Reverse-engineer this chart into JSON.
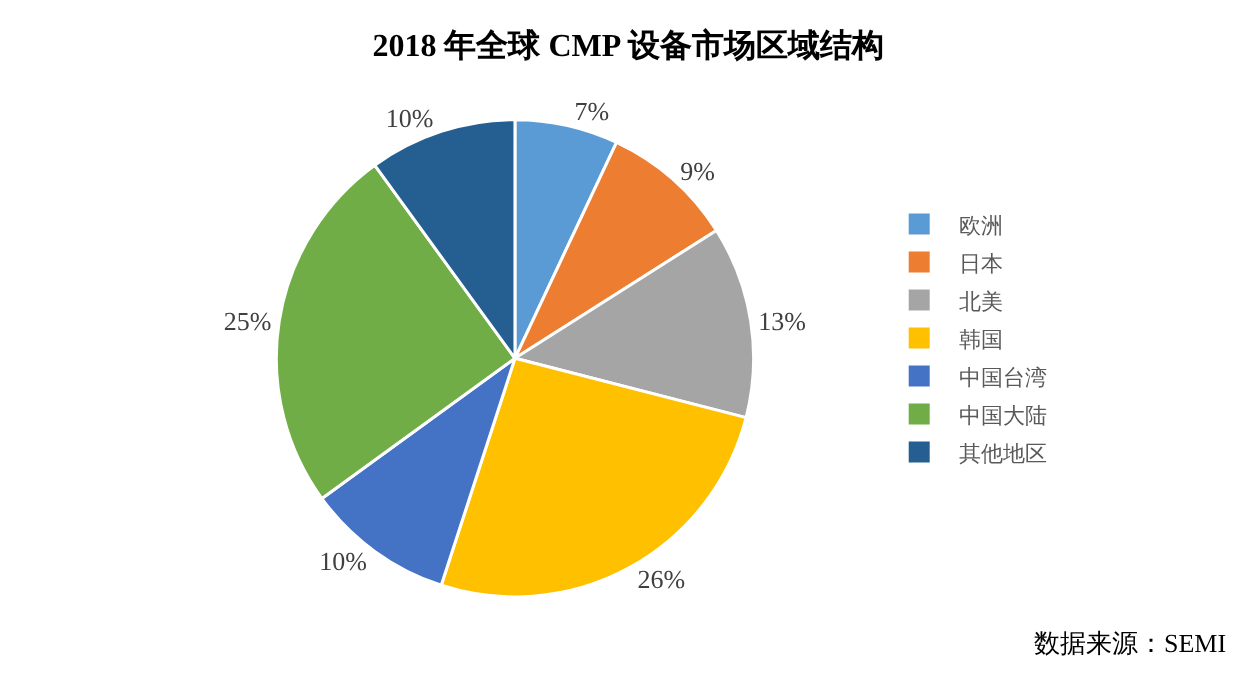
{
  "chart_data": {
    "type": "pie",
    "title": "2018 年全球 CMP 设备市场区域结构",
    "categories": [
      "欧洲",
      "日本",
      "北美",
      "韩国",
      "中国台湾",
      "中国大陆",
      "其他地区"
    ],
    "values": [
      7,
      9,
      13,
      26,
      10,
      25,
      10
    ],
    "value_labels": [
      "7%",
      "9%",
      "13%",
      "26%",
      "10%",
      "25%",
      "10%"
    ],
    "colors": [
      "#5b9bd5",
      "#ed7d31",
      "#a5a5a5",
      "#ffc000",
      "#4472c4",
      "#70ad47",
      "#255e91"
    ],
    "legend": "right",
    "annotations": [
      "数据来源：SEMI"
    ]
  }
}
